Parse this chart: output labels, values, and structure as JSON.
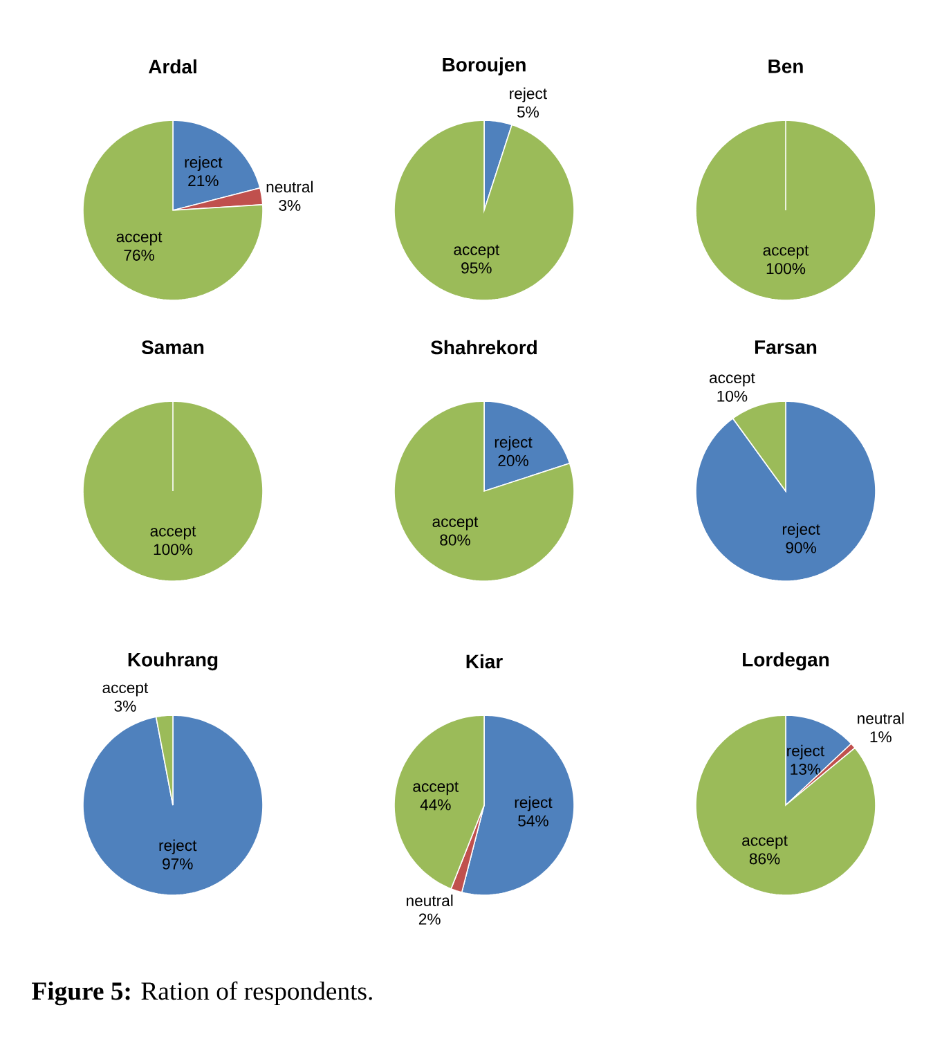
{
  "chart_data": [
    {
      "type": "pie",
      "title": "Ardal",
      "categories": [
        "reject",
        "neutral",
        "accept"
      ],
      "values": [
        21,
        3,
        76
      ],
      "value_labels": [
        "21%",
        "3%",
        "76%"
      ],
      "colors": [
        "#4f81bd",
        "#c0504d",
        "#9bbb59"
      ]
    },
    {
      "type": "pie",
      "title": "Boroujen",
      "categories": [
        "reject",
        "accept"
      ],
      "values": [
        5,
        95
      ],
      "value_labels": [
        "5%",
        "95%"
      ],
      "colors": [
        "#4f81bd",
        "#9bbb59"
      ]
    },
    {
      "type": "pie",
      "title": "Ben",
      "categories": [
        "accept"
      ],
      "values": [
        100
      ],
      "value_labels": [
        "100%"
      ],
      "colors": [
        "#9bbb59"
      ]
    },
    {
      "type": "pie",
      "title": "Saman",
      "categories": [
        "accept"
      ],
      "values": [
        100
      ],
      "value_labels": [
        "100%"
      ],
      "colors": [
        "#9bbb59"
      ]
    },
    {
      "type": "pie",
      "title": "Shahrekord",
      "categories": [
        "reject",
        "accept"
      ],
      "values": [
        20,
        80
      ],
      "value_labels": [
        "20%",
        "80%"
      ],
      "colors": [
        "#4f81bd",
        "#9bbb59"
      ]
    },
    {
      "type": "pie",
      "title": "Farsan",
      "categories": [
        "reject",
        "accept"
      ],
      "values": [
        90,
        10
      ],
      "value_labels": [
        "90%",
        "10%"
      ],
      "colors": [
        "#4f81bd",
        "#9bbb59"
      ]
    },
    {
      "type": "pie",
      "title": "Kouhrang",
      "categories": [
        "reject",
        "accept"
      ],
      "values": [
        97,
        3
      ],
      "value_labels": [
        "97%",
        "3%"
      ],
      "colors": [
        "#4f81bd",
        "#9bbb59"
      ]
    },
    {
      "type": "pie",
      "title": "Kiar",
      "categories": [
        "reject",
        "neutral",
        "accept"
      ],
      "values": [
        54,
        2,
        44
      ],
      "value_labels": [
        "54%",
        "2%",
        "44%"
      ],
      "colors": [
        "#4f81bd",
        "#c0504d",
        "#9bbb59"
      ]
    },
    {
      "type": "pie",
      "title": "Lordegan",
      "categories": [
        "reject",
        "neutral",
        "accept"
      ],
      "values": [
        13,
        1,
        86
      ],
      "value_labels": [
        "13%",
        "1%",
        "86%"
      ],
      "colors": [
        "#4f81bd",
        "#c0504d",
        "#9bbb59"
      ],
      "annotations": [
        "**Figure 5:** Ration of respondents."
      ]
    }
  ]
}
